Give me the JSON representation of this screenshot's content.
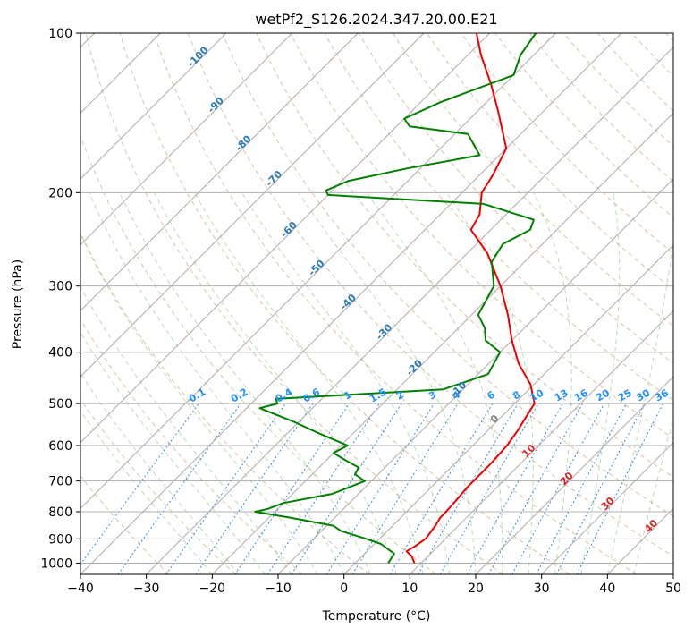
{
  "chart_data": {
    "type": "line",
    "subtype": "skew-t log-p",
    "title": "wetPf2_S126.2024.347.20.00.E21",
    "xlabel": "Temperature (°C)",
    "ylabel": "Pressure (hPa)",
    "xlim": [
      -40,
      50
    ],
    "ylim": [
      1050,
      100
    ],
    "y_scale": "log",
    "grid": true,
    "x_ticks": [
      -40,
      -30,
      -20,
      -10,
      0,
      10,
      20,
      30,
      40,
      50
    ],
    "y_ticks": [
      100,
      200,
      300,
      400,
      500,
      600,
      700,
      800,
      900,
      1000
    ],
    "series": [
      {
        "name": "",
        "color": "#ee0000",
        "pressure": [
          1000,
          970,
          950,
          930,
          900,
          880,
          850,
          820,
          800,
          760,
          720,
          700,
          650,
          600,
          560,
          520,
          500,
          460,
          420,
          380,
          340,
          300,
          260,
          235,
          220,
          200,
          185,
          165,
          140,
          125,
          110,
          100
        ],
        "values": [
          9.0,
          7.5,
          6.0,
          6.5,
          7.0,
          6.8,
          6.5,
          6.0,
          6.0,
          5.8,
          5.5,
          5.5,
          5.5,
          5.2,
          4.5,
          3.5,
          3.0,
          -0.5,
          -5.5,
          -10.0,
          -14.5,
          -20.0,
          -27.0,
          -33.0,
          -34.0,
          -37.0,
          -38.0,
          -40.0,
          -47.0,
          -52.0,
          -58.0,
          -62.0
        ]
      },
      {
        "name": "",
        "color": "#008000",
        "pressure": [
          1000,
          960,
          920,
          900,
          870,
          850,
          820,
          800,
          790,
          770,
          740,
          700,
          680,
          660,
          640,
          620,
          600,
          570,
          540,
          510,
          500,
          490,
          470,
          440,
          400,
          380,
          360,
          340,
          300,
          270,
          250,
          235,
          225,
          210,
          202,
          198,
          190,
          180,
          170,
          155,
          150,
          145,
          135,
          120,
          110,
          100
        ],
        "values": [
          5.0,
          4.5,
          1.0,
          -2.0,
          -7.0,
          -9.0,
          -17.0,
          -23.0,
          -21.5,
          -20.0,
          -14.0,
          -11.0,
          -13.5,
          -14.0,
          -17.0,
          -20.0,
          -19.0,
          -25.0,
          -31.0,
          -38.0,
          -36.0,
          -37.0,
          -13.0,
          -8.5,
          -10.0,
          -14.0,
          -16.0,
          -19.0,
          -21.0,
          -25.0,
          -26.0,
          -24.0,
          -25.0,
          -35.0,
          -60.0,
          -61.0,
          -59.0,
          -52.0,
          -43.0,
          -48.0,
          -58.0,
          -60.0,
          -57.0,
          -50.0,
          -52.0,
          -53.0
        ]
      }
    ],
    "isotherm_labels": [
      "-100",
      "-90",
      "-80",
      "-70",
      "-60",
      "-50",
      "-40",
      "-30",
      "-20",
      "-10",
      "0",
      "10",
      "20",
      "30",
      "40"
    ],
    "mixing_ratio_labels": [
      "0.1",
      "0.2",
      "0.4",
      "0.6",
      "1",
      "1.5",
      "2",
      "3",
      "4",
      "6",
      "8",
      "10",
      "13",
      "16",
      "20",
      "25",
      "30",
      "36"
    ]
  }
}
